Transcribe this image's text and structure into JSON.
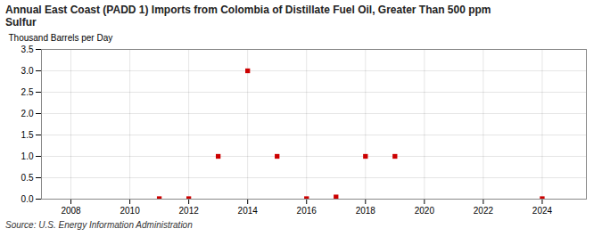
{
  "chart_data": {
    "type": "scatter",
    "title": "Annual East Coast (PADD 1) Imports from Colombia of Distillate Fuel Oil, Greater Than 500 ppm\nSulfur",
    "ylabel": "Thousand Barrels per Day",
    "source": "Source: U.S. Energy Information Administration",
    "x": [
      2011,
      2012,
      2013,
      2014,
      2015,
      2016,
      2017,
      2018,
      2019,
      2024
    ],
    "values": [
      0.01,
      0.01,
      1.0,
      3.0,
      1.0,
      0.01,
      0.05,
      1.0,
      1.0,
      0.01
    ],
    "color": "#cc0000",
    "marker": "square",
    "xlim": [
      2007.0,
      2025.5
    ],
    "ylim": [
      0.0,
      3.5
    ],
    "xticks": [
      2008,
      2010,
      2012,
      2014,
      2016,
      2018,
      2020,
      2022,
      2024
    ],
    "yticks": [
      {
        "value": 0.0,
        "label": "0.0"
      },
      {
        "value": 0.5,
        "label": "0.5"
      },
      {
        "value": 1.0,
        "label": "1.0"
      },
      {
        "value": 1.5,
        "label": "1.5"
      },
      {
        "value": 2.0,
        "label": "2.0"
      },
      {
        "value": 2.5,
        "label": "2.5"
      },
      {
        "value": 3.0,
        "label": "3.0"
      },
      {
        "value": 3.5,
        "label": "3.5"
      }
    ],
    "grid": true
  }
}
